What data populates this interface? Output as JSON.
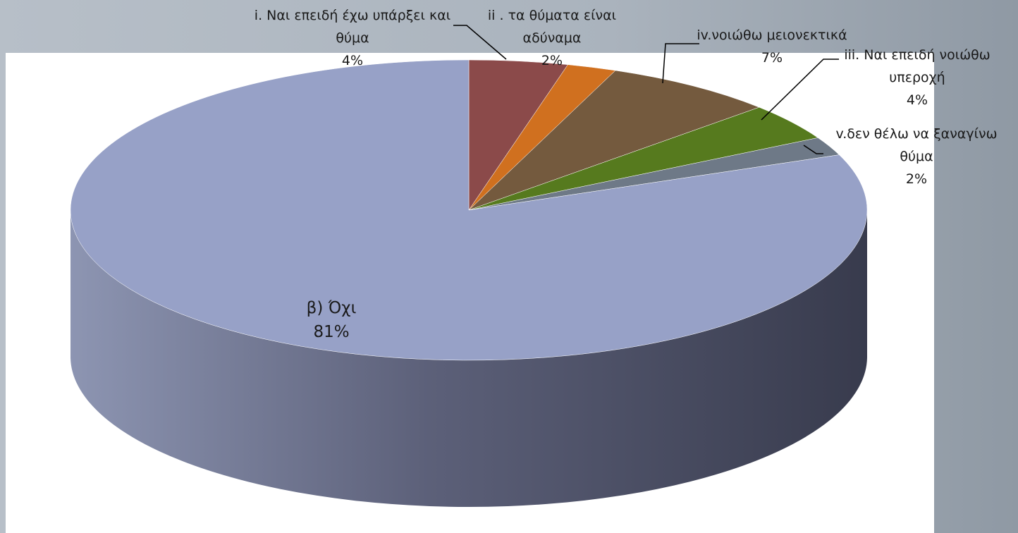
{
  "chart_data": {
    "type": "pie3d",
    "categories": [
      "i. Ναι επειδή έχω υπάρξει και θύμα",
      "ii . τα θύματα είναι αδύναμα",
      "iv.νοιώθω μειονεκτικά",
      "iii. Ναι επειδή νοιώθω υπεροχή",
      "v.δεν θέλω να ξαναγίνω θύμα",
      "β) Όχι"
    ],
    "values": [
      4,
      2,
      7,
      4,
      2,
      81
    ],
    "value_labels": [
      "4%",
      "2%",
      "7%",
      "4%",
      "2%",
      "81%"
    ],
    "colors": [
      "#8b4a4a",
      "#d0701f",
      "#745a3e",
      "#567a1e",
      "#6e7987",
      "#97a1c7"
    ]
  }
}
